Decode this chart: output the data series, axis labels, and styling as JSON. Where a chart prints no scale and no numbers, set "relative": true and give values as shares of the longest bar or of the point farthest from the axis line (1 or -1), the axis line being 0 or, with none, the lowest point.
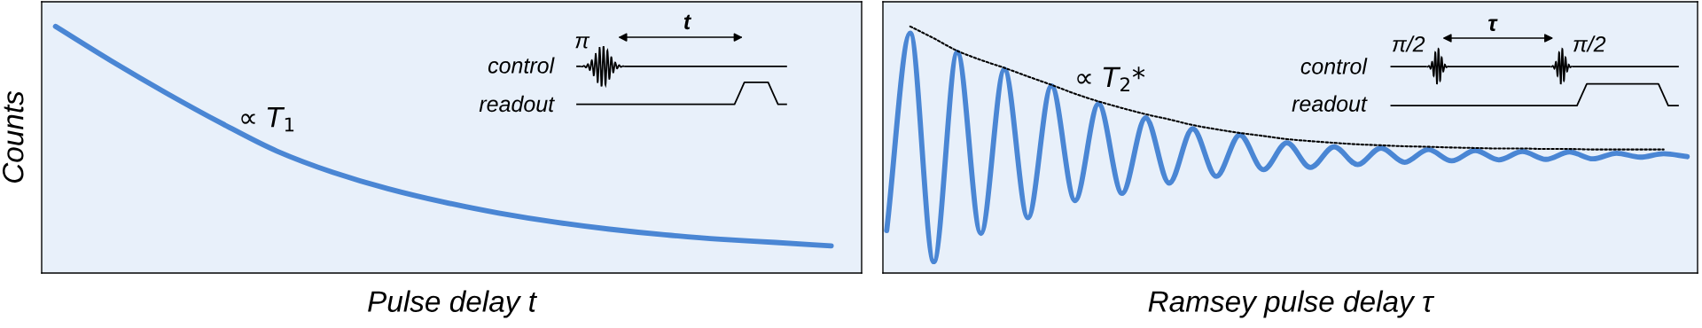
{
  "chart_data": [
    {
      "type": "line",
      "relative": true,
      "tick_labels": false,
      "xlabel": "Pulse delay t",
      "ylabel": "Counts",
      "annotations": [
        "∝ T$_{1}$",
        "control",
        "readout",
        "π",
        "t"
      ],
      "categories": [
        null,
        null,
        null,
        null,
        null,
        null,
        null,
        null,
        null,
        null,
        null,
        null,
        null,
        null,
        null
      ],
      "series": [
        {
          "color": "#4a86d4",
          "values": [
            1.0,
            0.861,
            0.73,
            0.607,
            0.494,
            0.409,
            0.342,
            0.288,
            0.243,
            0.207,
            0.178,
            0.155,
            0.137,
            0.124,
            0.11
          ]
        }
      ]
    },
    {
      "type": "line",
      "relative": true,
      "tick_labels": false,
      "xlabel": "Ramsey pulse delay τ",
      "annotations": [
        "∝ T$_{2}$*",
        "control",
        "readout",
        "π/2",
        "π/2",
        "τ"
      ],
      "categories": [
        null,
        null,
        null,
        null,
        null,
        null,
        null,
        null,
        null,
        null,
        null,
        null,
        null,
        null,
        null,
        null,
        null,
        null,
        null,
        null,
        null,
        null,
        null,
        null,
        null,
        null,
        null,
        null,
        null,
        null,
        null,
        null,
        null,
        null,
        null
      ],
      "series": [
        {
          "color": "#4a86d4",
          "values": [
            0.172,
            0.973,
            0.046,
            0.895,
            0.161,
            0.826,
            0.224,
            0.759,
            0.294,
            0.686,
            0.323,
            0.629,
            0.365,
            0.585,
            0.392,
            0.56,
            0.419,
            0.528,
            0.428,
            0.512,
            0.44,
            0.507,
            0.449,
            0.501,
            0.455,
            0.497,
            0.459,
            0.493,
            0.461,
            0.491,
            0.463,
            0.486,
            0.47,
            0.484,
            0.472
          ]
        },
        {
          "color": "#000000",
          "line_style": "dotted",
          "values": [
            null,
            1.0,
            0.952,
            0.901,
            0.864,
            0.832,
            0.797,
            0.763,
            0.727,
            0.696,
            0.669,
            0.644,
            0.623,
            0.6,
            0.583,
            0.568,
            0.556,
            0.543,
            0.535,
            0.528,
            0.522,
            0.518,
            0.514,
            0.512,
            0.509,
            0.507,
            0.505,
            0.505,
            0.503,
            0.503,
            0.501,
            0.501,
            0.501,
            0.501,
            null
          ]
        }
      ]
    }
  ]
}
